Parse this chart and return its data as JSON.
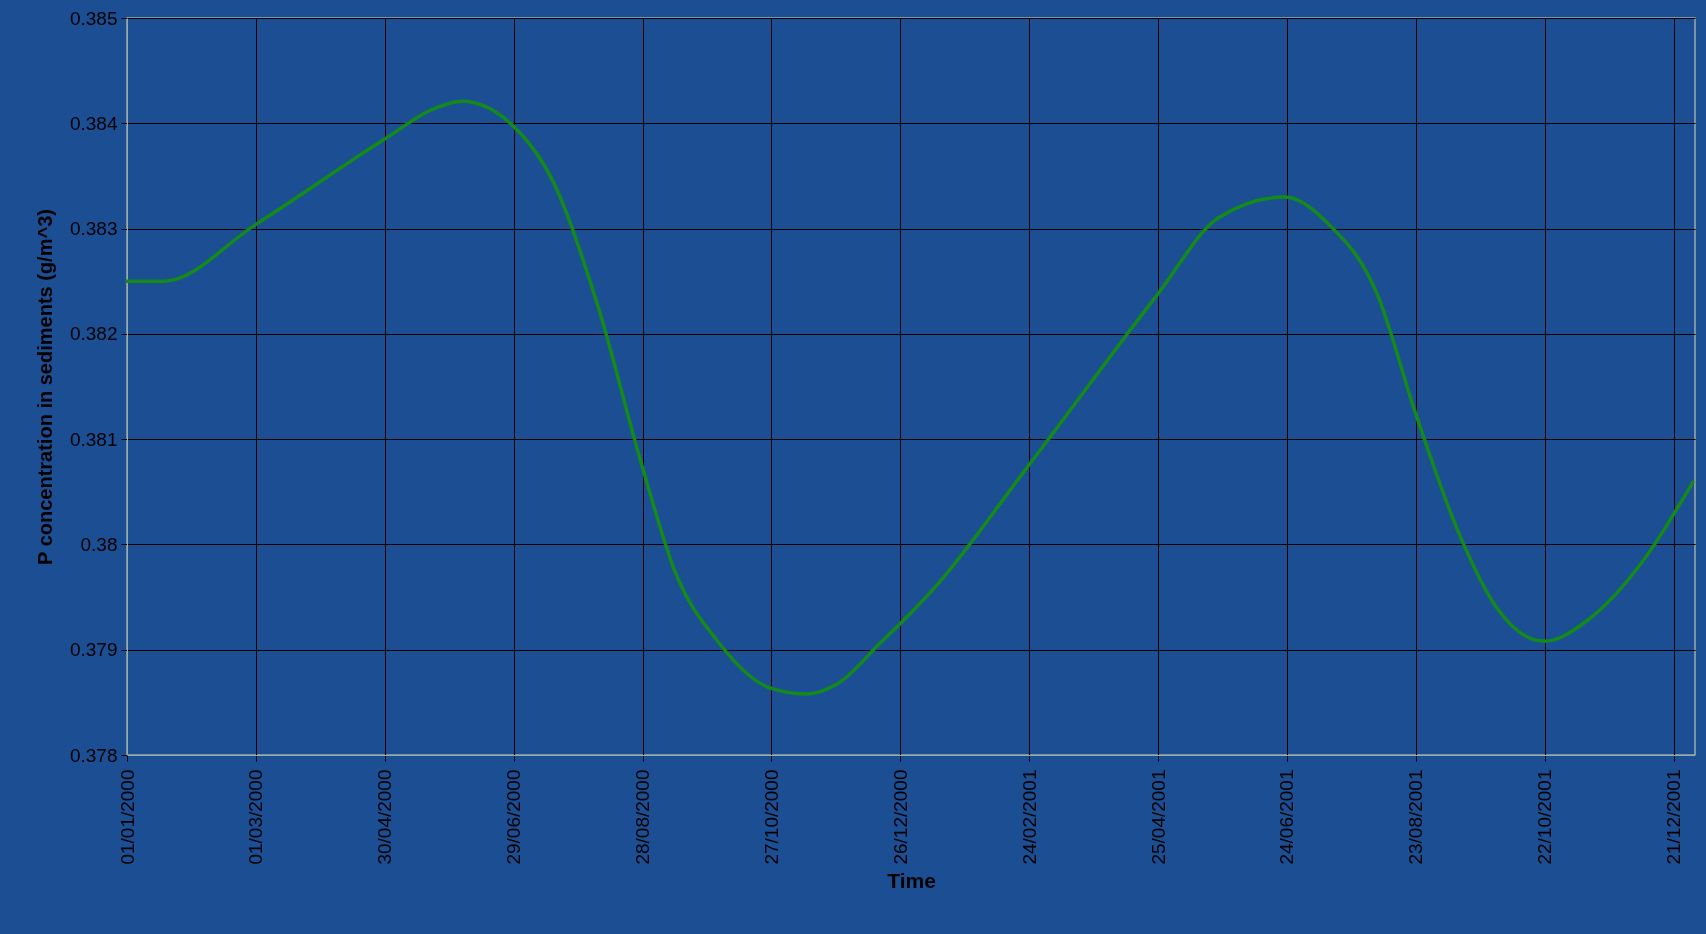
{
  "chart_data": {
    "type": "line",
    "xlabel": "Time",
    "ylabel": "P concentration in sediments (g/m^3)",
    "x": [
      "2000-01-01",
      "2000-01-18",
      "2000-03-01",
      "2000-04-30",
      "2000-05-23",
      "2000-06-05",
      "2000-06-28",
      "2000-07-18",
      "2000-08-07",
      "2000-08-28",
      "2000-09-12",
      "2000-10-02",
      "2000-10-26",
      "2000-11-12",
      "2000-11-27",
      "2000-12-17",
      "2000-12-30",
      "2001-01-11",
      "2001-02-23",
      "2001-04-25",
      "2001-05-23",
      "2001-06-23",
      "2001-07-13",
      "2001-08-05",
      "2001-08-23",
      "2001-09-12",
      "2001-09-30",
      "2001-10-22",
      "2001-11-11",
      "2001-12-07",
      "2001-12-30"
    ],
    "series": [
      {
        "color": "#138a1a",
        "values": [
          0.3825,
          0.3825,
          0.38304,
          0.38385,
          0.38414,
          0.38421,
          0.38399,
          0.38342,
          0.38228,
          0.38073,
          0.37975,
          0.37908,
          0.37864,
          0.37858,
          0.37868,
          0.37907,
          0.37933,
          0.37959,
          0.38073,
          0.38238,
          0.3831,
          0.3833,
          0.38305,
          0.38238,
          0.38124,
          0.38011,
          0.37939,
          0.37908,
          0.37928,
          0.37985,
          0.38059
        ]
      }
    ],
    "xlim": [
      "2000-01-01",
      "2001-12-31"
    ],
    "xticks": [
      {
        "value": "2000-01-01",
        "label": "01/01/2000"
      },
      {
        "value": "2000-03-01",
        "label": "01/03/2000"
      },
      {
        "value": "2000-04-30",
        "label": "30/04/2000"
      },
      {
        "value": "2000-06-29",
        "label": "29/06/2000"
      },
      {
        "value": "2000-08-28",
        "label": "28/08/2000"
      },
      {
        "value": "2000-10-27",
        "label": "27/10/2000"
      },
      {
        "value": "2000-12-26",
        "label": "26/12/2000"
      },
      {
        "value": "2001-02-24",
        "label": "24/02/2001"
      },
      {
        "value": "2001-04-25",
        "label": "25/04/2001"
      },
      {
        "value": "2001-06-24",
        "label": "24/06/2001"
      },
      {
        "value": "2001-08-23",
        "label": "23/08/2001"
      },
      {
        "value": "2001-10-22",
        "label": "22/10/2001"
      },
      {
        "value": "2001-12-21",
        "label": "21/12/2001"
      }
    ],
    "ylim": [
      0.378,
      0.385
    ],
    "yticks": [
      0.378,
      0.379,
      0.38,
      0.381,
      0.382,
      0.383,
      0.384,
      0.385
    ],
    "grid": true,
    "line_style": "solid",
    "marker": "none"
  }
}
